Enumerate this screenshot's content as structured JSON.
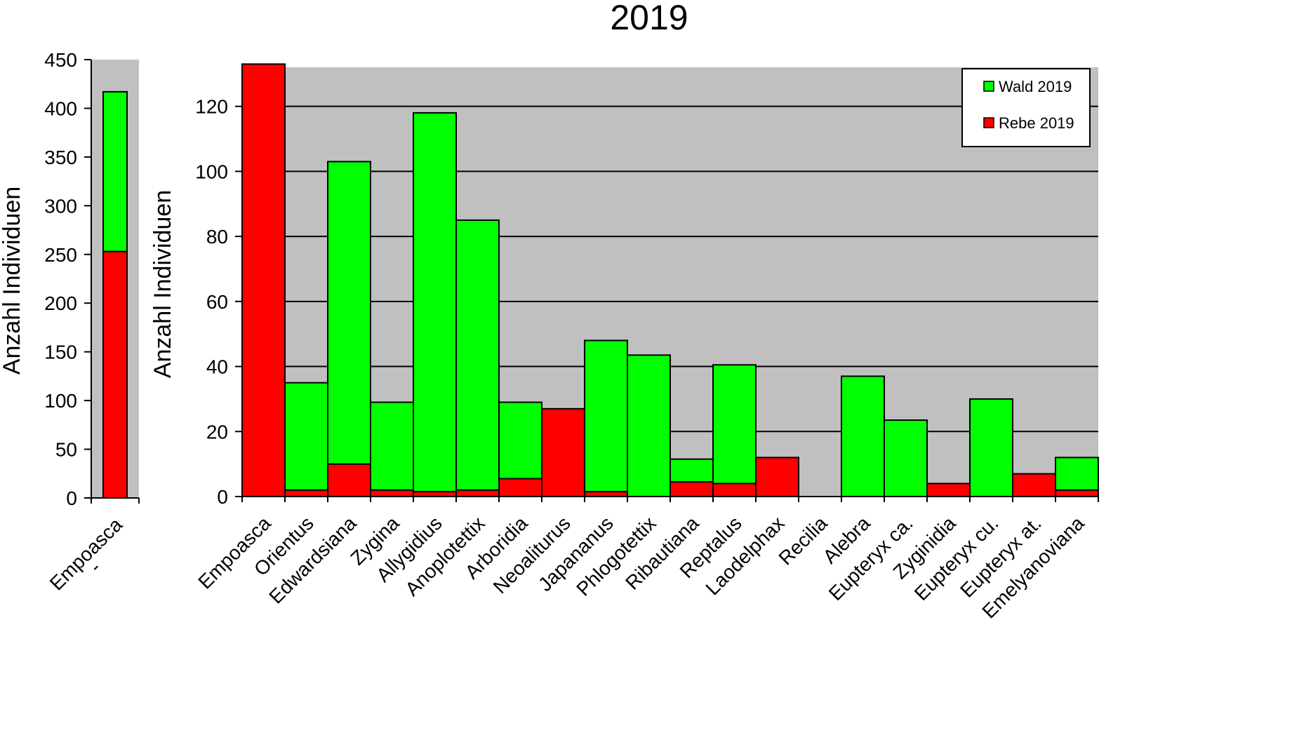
{
  "figure": {
    "title": "2019"
  },
  "chart_data": [
    {
      "type": "bar",
      "stacked": true,
      "categories": [
        "Empoasca"
      ],
      "footnote_mark": "-",
      "ylabel": "Anzahl Individuen",
      "ylim": [
        0,
        450
      ],
      "yticks": [
        0,
        50,
        100,
        150,
        200,
        250,
        300,
        350,
        400,
        450
      ],
      "grid": false,
      "series": [
        {
          "name": "Rebe 2019",
          "color": "#ff0000",
          "values": [
            253
          ]
        },
        {
          "name": "Wald 2019",
          "color": "#00ff00",
          "values": [
            164
          ]
        }
      ]
    },
    {
      "type": "bar",
      "stacked": true,
      "categories": [
        "Empoasca",
        "Orientus",
        "Edwardsiana",
        "Zygina",
        "Allygidius",
        "Anoplotettix",
        "Arboridia",
        "Neoaliturus",
        "Japananus",
        "Phlogotettix",
        "Ribautiana",
        "Reptalus",
        "Laodelphax",
        "Recilia",
        "Alebra",
        "Eupteryx ca.",
        "Zyginidia",
        "Eupteryx cu.",
        "Eupteryx at.",
        "Emelyanoviana"
      ],
      "ylabel": "Anzahl Individuen",
      "ylim": [
        0,
        132
      ],
      "yticks": [
        0,
        20,
        40,
        60,
        80,
        100,
        120
      ],
      "grid": true,
      "legend_position": "top-right",
      "series": [
        {
          "name": "Rebe 2019",
          "color": "#ff0000",
          "values": [
            133,
            2,
            10,
            2,
            1.5,
            2,
            5.5,
            27,
            1.5,
            0,
            4.5,
            4,
            12,
            0,
            0,
            0,
            4,
            0,
            7,
            2
          ]
        },
        {
          "name": "Wald 2019",
          "color": "#00ff00",
          "values": [
            0,
            33,
            93,
            27,
            116.5,
            83,
            23.5,
            0,
            46.5,
            43.5,
            7,
            36.5,
            0,
            0,
            37,
            23.5,
            0,
            30,
            0,
            10
          ]
        }
      ],
      "legend": [
        {
          "label": "Wald 2019",
          "color": "#00ff00"
        },
        {
          "label": "Rebe 2019",
          "color": "#ff0000"
        }
      ]
    }
  ]
}
